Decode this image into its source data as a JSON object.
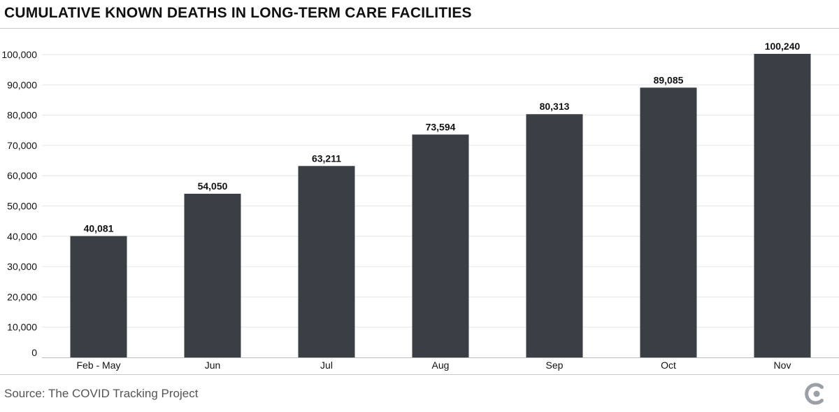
{
  "colors": {
    "bar": "#3a3e45",
    "grid": "#e6e6e6",
    "axis": "#bbbbbb",
    "text": "#111111",
    "logo": "#9b9fa6"
  },
  "icons": {
    "logo": "covid-tracking-project-logo-icon"
  },
  "chart_data": {
    "type": "bar",
    "title": "CUMULATIVE KNOWN DEATHS IN LONG-TERM CARE FACILITIES",
    "xlabel": "",
    "ylabel": "",
    "categories": [
      "Feb - May",
      "Jun",
      "Jul",
      "Aug",
      "Sep",
      "Oct",
      "Nov"
    ],
    "values": [
      40081,
      54050,
      63211,
      73594,
      80313,
      89085,
      100240
    ],
    "value_labels": [
      "40,081",
      "54,050",
      "63,211",
      "73,594",
      "80,313",
      "89,085",
      "100,240"
    ],
    "yticks": [
      0,
      10000,
      20000,
      30000,
      40000,
      50000,
      60000,
      70000,
      80000,
      90000,
      100000
    ],
    "ytick_labels": [
      "0",
      "10,000",
      "20,000",
      "30,000",
      "40,000",
      "50,000",
      "60,000",
      "70,000",
      "80,000",
      "90,000",
      "100,000"
    ],
    "ylim": [
      0,
      100000
    ],
    "grid": true
  },
  "footer": {
    "source": "Source: The COVID Tracking Project"
  }
}
